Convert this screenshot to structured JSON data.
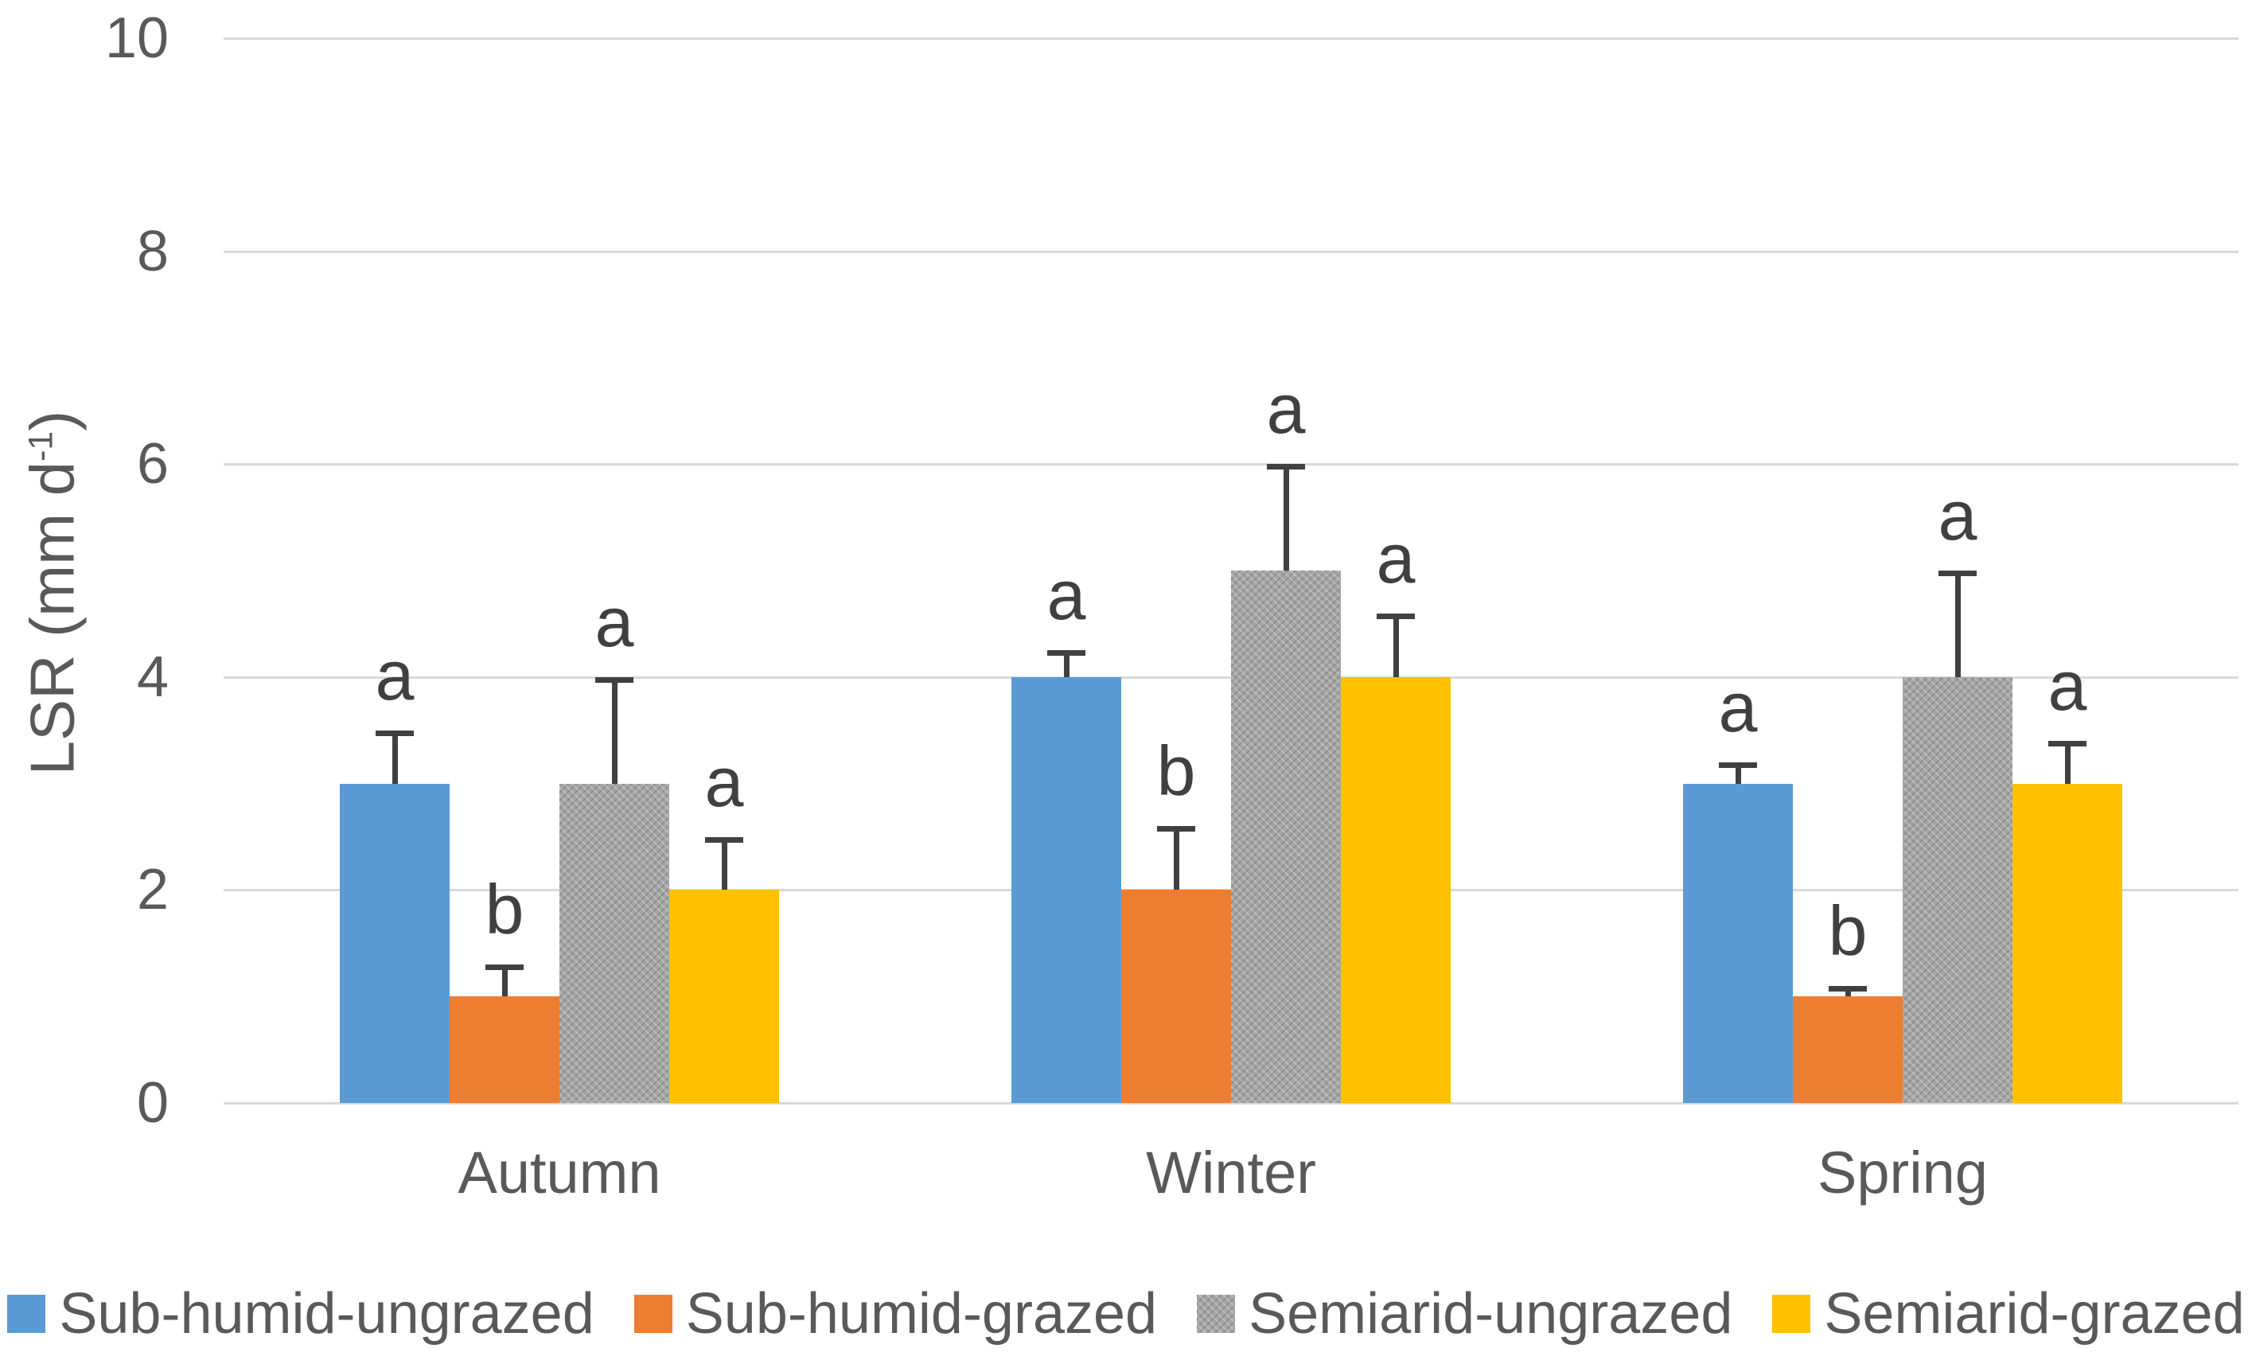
{
  "chart_data": {
    "type": "bar",
    "title": "",
    "xlabel": "",
    "ylabel": {
      "pre": "LSR (mm d",
      "sup": "-1",
      "post": ")"
    },
    "categories": [
      "Autumn",
      "Winter",
      "Spring"
    ],
    "series": [
      {
        "name": "Sub-humid-ungrazed",
        "color": "#5B9BD5",
        "pattern": false,
        "values": [
          3,
          4,
          3
        ],
        "errors_up": [
          0.5,
          0.25,
          0.2
        ],
        "letters": [
          "a",
          "a",
          "a"
        ]
      },
      {
        "name": "Sub-humid-grazed",
        "color": "#ED7D31",
        "pattern": false,
        "values": [
          1,
          2,
          1
        ],
        "errors_up": [
          0.3,
          0.6,
          0.1
        ],
        "letters": [
          "b",
          "b",
          "b"
        ]
      },
      {
        "name": "Semiarid-ungrazed",
        "color": "#A6A6A6",
        "pattern": true,
        "values": [
          3,
          5,
          4
        ],
        "errors_up": [
          1.0,
          1.0,
          1.0
        ],
        "letters": [
          "a",
          "a",
          "a"
        ]
      },
      {
        "name": "Semiarid-grazed",
        "color": "#FFC000",
        "pattern": false,
        "values": [
          2,
          4,
          3
        ],
        "errors_up": [
          0.5,
          0.6,
          0.4
        ],
        "letters": [
          "a",
          "a",
          "a"
        ]
      }
    ],
    "y_axis": {
      "min": 0,
      "max": 10,
      "step": 2,
      "ticks": [
        0,
        2,
        4,
        6,
        8,
        10
      ]
    },
    "grid": true,
    "legend_position": "bottom",
    "colors": {
      "background": "#FFFFFF",
      "gridline": "#D9D9D9",
      "axis_text": "#595959",
      "error_bar": "#404040",
      "letter": "#404040"
    }
  }
}
